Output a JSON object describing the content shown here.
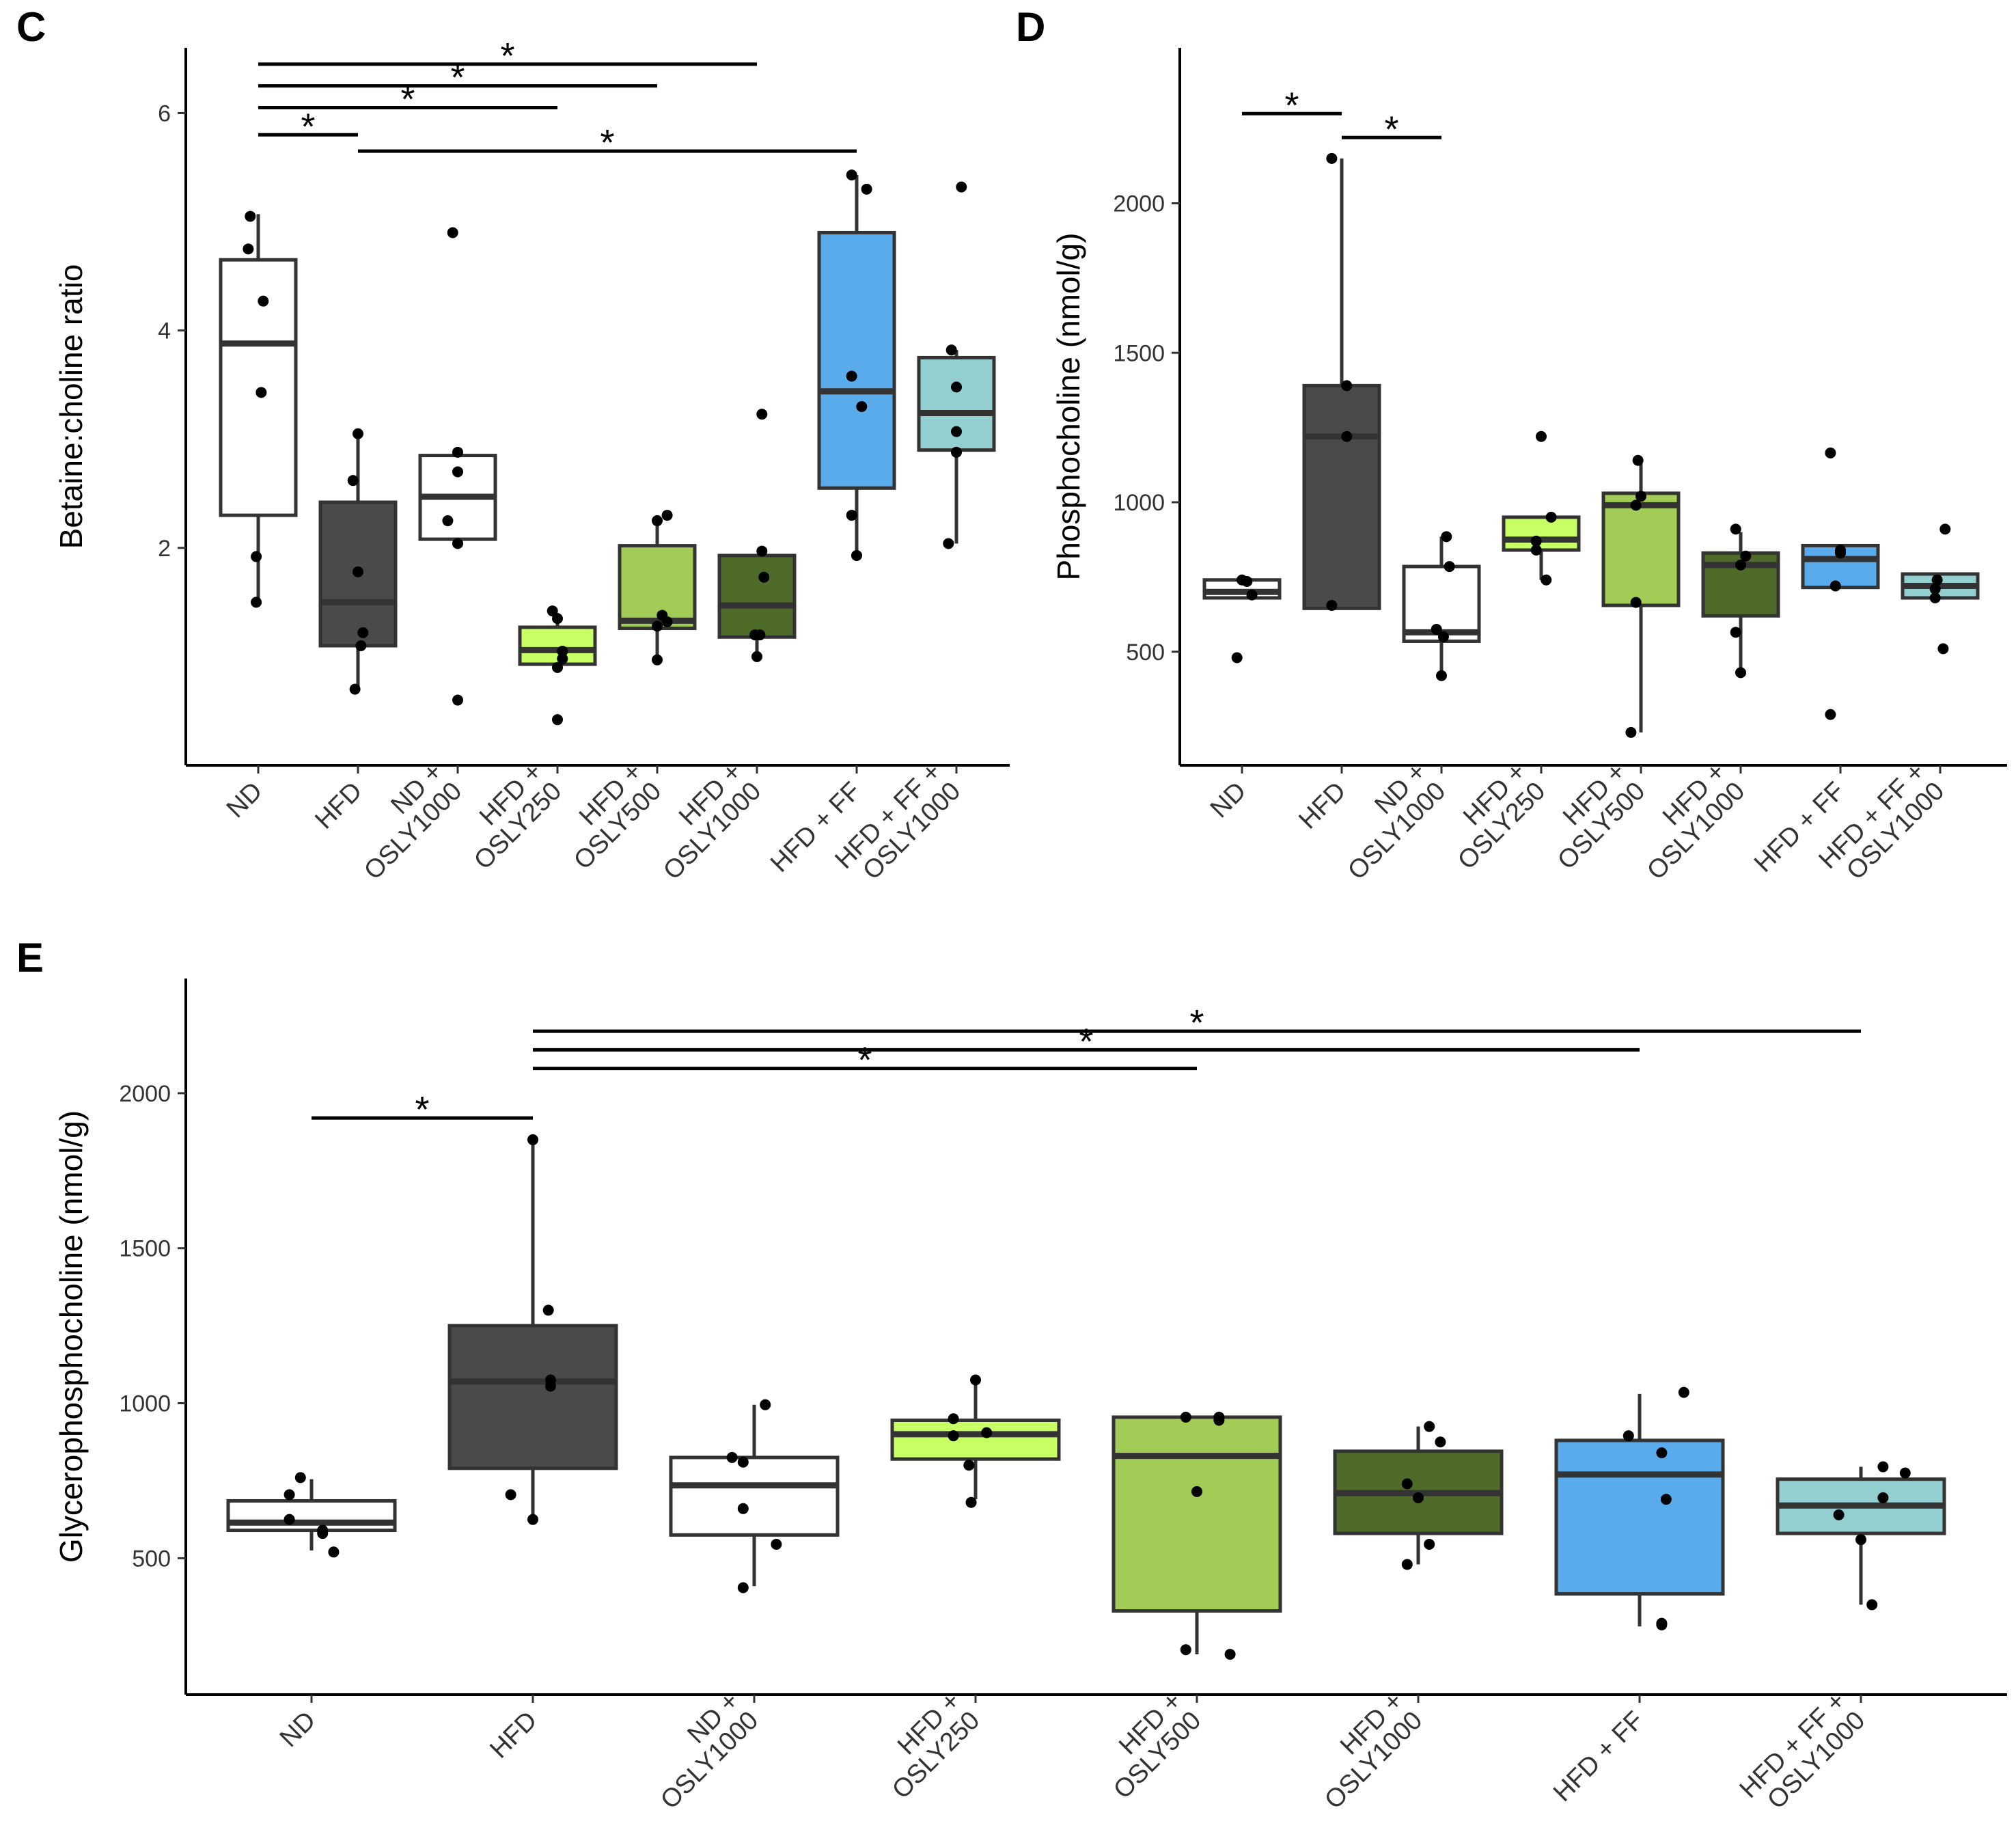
{
  "figure": {
    "panels": [
      "C",
      "D",
      "E"
    ]
  },
  "chart_data": [
    {
      "panel": "C",
      "type": "box",
      "ylabel": "Betaine:choline ratio",
      "ylim": [
        0.0,
        6.6
      ],
      "yticks": [
        2,
        4,
        6
      ],
      "categories": [
        "ND",
        "HFD",
        "ND +\nOSLY1000",
        "HFD +\nOSLY250",
        "HFD +\nOSLY500",
        "HFD +\nOSLY1000",
        "HFD + FF",
        "HFD + FF +\nOSLY1000"
      ],
      "colors": [
        "#ffffff",
        "#4a4a4a",
        "#ffffff",
        "#c8ff64",
        "#a2cc55",
        "#4e6b2a",
        "#5aabeb",
        "#93ced0"
      ],
      "boxes": [
        {
          "whisker_low": 1.5,
          "q1": 2.3,
          "median": 3.88,
          "q3": 4.65,
          "whisker_high": 5.07
        },
        {
          "whisker_low": 0.7,
          "q1": 1.1,
          "median": 1.5,
          "q3": 2.42,
          "whisker_high": 3.05
        },
        {
          "whisker_low": 2.04,
          "q1": 2.08,
          "median": 2.47,
          "q3": 2.85,
          "whisker_high": 2.85
        },
        {
          "whisker_low": 0.9,
          "q1": 0.93,
          "median": 1.06,
          "q3": 1.27,
          "whisker_high": 1.4
        },
        {
          "whisker_low": 0.96,
          "q1": 1.26,
          "median": 1.33,
          "q3": 2.02,
          "whisker_high": 2.3
        },
        {
          "whisker_low": 1.0,
          "q1": 1.18,
          "median": 1.47,
          "q3": 1.93,
          "whisker_high": 1.93
        },
        {
          "whisker_low": 1.93,
          "q1": 2.55,
          "median": 3.44,
          "q3": 4.9,
          "whisker_high": 5.43
        },
        {
          "whisker_low": 2.04,
          "q1": 2.9,
          "median": 3.24,
          "q3": 3.75,
          "whisker_high": 3.82
        }
      ],
      "points": [
        [
          [
            -0.08,
            5.05
          ],
          [
            -0.1,
            4.75
          ],
          [
            0.05,
            4.27
          ],
          [
            0.03,
            3.43
          ],
          [
            -0.02,
            1.92
          ],
          [
            -0.02,
            1.5
          ]
        ],
        [
          [
            0.0,
            3.05
          ],
          [
            -0.05,
            2.62
          ],
          [
            0.0,
            1.78
          ],
          [
            0.05,
            1.22
          ],
          [
            0.03,
            1.1
          ],
          [
            -0.03,
            0.7
          ]
        ],
        [
          [
            -0.05,
            4.9
          ],
          [
            0.0,
            2.88
          ],
          [
            0.0,
            2.7
          ],
          [
            -0.1,
            2.25
          ],
          [
            0.0,
            2.04
          ],
          [
            0.0,
            0.6
          ]
        ],
        [
          [
            -0.05,
            1.42
          ],
          [
            0.0,
            1.35
          ],
          [
            0.05,
            1.05
          ],
          [
            0.0,
            0.9
          ],
          [
            0.05,
            0.98
          ],
          [
            0.0,
            0.42
          ]
        ],
        [
          [
            0.1,
            2.3
          ],
          [
            0.0,
            2.25
          ],
          [
            0.05,
            1.38
          ],
          [
            0.1,
            1.32
          ],
          [
            0.0,
            0.97
          ],
          [
            0.0,
            1.28
          ]
        ],
        [
          [
            0.05,
            3.23
          ],
          [
            0.05,
            1.97
          ],
          [
            0.07,
            1.73
          ],
          [
            -0.02,
            1.2
          ],
          [
            0.03,
            1.2
          ],
          [
            0.0,
            1.0
          ]
        ],
        [
          [
            -0.05,
            5.43
          ],
          [
            0.1,
            5.3
          ],
          [
            -0.05,
            3.58
          ],
          [
            0.05,
            3.3
          ],
          [
            -0.05,
            2.3
          ],
          [
            0.0,
            1.93
          ]
        ],
        [
          [
            0.05,
            5.32
          ],
          [
            -0.05,
            3.82
          ],
          [
            0.0,
            3.48
          ],
          [
            0.0,
            3.07
          ],
          [
            0.0,
            2.88
          ],
          [
            -0.08,
            2.04
          ]
        ]
      ],
      "significance": [
        {
          "from": 0,
          "to": 5,
          "y": 6.45,
          "label": "*"
        },
        {
          "from": 0,
          "to": 4,
          "y": 6.25,
          "label": "*"
        },
        {
          "from": 0,
          "to": 3,
          "y": 6.05,
          "label": "*"
        },
        {
          "from": 0,
          "to": 1,
          "y": 5.8,
          "label": "*"
        },
        {
          "from": 1,
          "to": 6,
          "y": 5.65,
          "label": "*"
        }
      ]
    },
    {
      "panel": "D",
      "type": "box",
      "ylabel": "Phosphocholine (nmol/g)",
      "ylim": [
        120,
        2520
      ],
      "yticks": [
        500,
        1000,
        1500,
        2000
      ],
      "categories": [
        "ND",
        "HFD",
        "ND +\nOSLY1000",
        "HFD +\nOSLY250",
        "HFD +\nOSLY500",
        "HFD +\nOSLY1000",
        "HFD + FF",
        "HFD + FF +\nOSLY1000"
      ],
      "colors": [
        "#ffffff",
        "#4a4a4a",
        "#ffffff",
        "#c8ff64",
        "#a2cc55",
        "#4e6b2a",
        "#5aabeb",
        "#93ced0"
      ],
      "boxes": [
        {
          "whisker_low": 680,
          "q1": 680,
          "median": 700,
          "q3": 740,
          "whisker_high": 740
        },
        {
          "whisker_low": 645,
          "q1": 645,
          "median": 1220,
          "q3": 1390,
          "whisker_high": 2150
        },
        {
          "whisker_low": 420,
          "q1": 535,
          "median": 565,
          "q3": 785,
          "whisker_high": 885
        },
        {
          "whisker_low": 740,
          "q1": 840,
          "median": 875,
          "q3": 950,
          "whisker_high": 950
        },
        {
          "whisker_low": 230,
          "q1": 655,
          "median": 990,
          "q3": 1030,
          "whisker_high": 1130
        },
        {
          "whisker_low": 425,
          "q1": 620,
          "median": 790,
          "q3": 830,
          "whisker_high": 900
        },
        {
          "whisker_low": 715,
          "q1": 715,
          "median": 810,
          "q3": 855,
          "whisker_high": 855
        },
        {
          "whisker_low": 680,
          "q1": 680,
          "median": 720,
          "q3": 760,
          "whisker_high": 760
        }
      ],
      "points": [
        [
          [
            0.0,
            740
          ],
          [
            0.05,
            735
          ],
          [
            0.1,
            690
          ],
          [
            -0.05,
            480
          ]
        ],
        [
          [
            -0.1,
            2150
          ],
          [
            0.05,
            1390
          ],
          [
            0.05,
            1220
          ],
          [
            -0.1,
            655
          ]
        ],
        [
          [
            0.05,
            885
          ],
          [
            0.08,
            785
          ],
          [
            -0.05,
            575
          ],
          [
            0.02,
            550
          ],
          [
            0.0,
            420
          ]
        ],
        [
          [
            0.0,
            1220
          ],
          [
            0.1,
            950
          ],
          [
            -0.05,
            870
          ],
          [
            -0.05,
            840
          ],
          [
            0.05,
            740
          ]
        ],
        [
          [
            -0.03,
            1140
          ],
          [
            0.0,
            1020
          ],
          [
            -0.05,
            990
          ],
          [
            -0.05,
            665
          ],
          [
            -0.1,
            230
          ]
        ],
        [
          [
            -0.05,
            910
          ],
          [
            0.05,
            820
          ],
          [
            0.0,
            790
          ],
          [
            -0.05,
            565
          ],
          [
            0.0,
            430
          ]
        ],
        [
          [
            -0.1,
            1165
          ],
          [
            0.0,
            840
          ],
          [
            0.0,
            830
          ],
          [
            -0.05,
            720
          ],
          [
            -0.1,
            290
          ]
        ],
        [
          [
            0.05,
            910
          ],
          [
            -0.03,
            740
          ],
          [
            -0.05,
            710
          ],
          [
            -0.05,
            680
          ],
          [
            0.03,
            510
          ]
        ]
      ],
      "significance": [
        {
          "from": 0,
          "to": 1,
          "y": 2300,
          "label": "*"
        },
        {
          "from": 1,
          "to": 2,
          "y": 2220,
          "label": "*"
        }
      ]
    },
    {
      "panel": "E",
      "type": "box",
      "ylabel": "Glycerophosphocholine (nmol/g)",
      "ylim": [
        60,
        2370
      ],
      "yticks": [
        500,
        1000,
        1500,
        2000
      ],
      "categories": [
        "ND",
        "HFD",
        "ND +\nOSLY1000",
        "HFD +\nOSLY250",
        "HFD +\nOSLY500",
        "HFD +\nOSLY1000",
        "HFD + FF",
        "HFD + FF +\nOSLY1000"
      ],
      "colors": [
        "#ffffff",
        "#4a4a4a",
        "#ffffff",
        "#c8ff64",
        "#a2cc55",
        "#4e6b2a",
        "#5aabeb",
        "#93ced0"
      ],
      "boxes": [
        {
          "whisker_low": 525,
          "q1": 590,
          "median": 615,
          "q3": 685,
          "whisker_high": 755
        },
        {
          "whisker_low": 625,
          "q1": 790,
          "median": 1070,
          "q3": 1250,
          "whisker_high": 1850
        },
        {
          "whisker_low": 410,
          "q1": 575,
          "median": 735,
          "q3": 825,
          "whisker_high": 995
        },
        {
          "whisker_low": 690,
          "q1": 820,
          "median": 900,
          "q3": 945,
          "whisker_high": 1075
        },
        {
          "whisker_low": 190,
          "q1": 330,
          "median": 830,
          "q3": 955,
          "whisker_high": 955
        },
        {
          "whisker_low": 480,
          "q1": 580,
          "median": 710,
          "q3": 845,
          "whisker_high": 925
        },
        {
          "whisker_low": 280,
          "q1": 385,
          "median": 770,
          "q3": 880,
          "whisker_high": 1030
        },
        {
          "whisker_low": 350,
          "q1": 580,
          "median": 670,
          "q3": 755,
          "whisker_high": 795
        }
      ],
      "points": [
        [
          [
            -0.05,
            760
          ],
          [
            -0.1,
            705
          ],
          [
            -0.1,
            625
          ],
          [
            0.05,
            590
          ],
          [
            0.05,
            580
          ],
          [
            0.1,
            520
          ]
        ],
        [
          [
            0.0,
            1850
          ],
          [
            0.07,
            1300
          ],
          [
            0.08,
            1075
          ],
          [
            0.08,
            1055
          ],
          [
            -0.1,
            705
          ],
          [
            0.0,
            625
          ]
        ],
        [
          [
            0.05,
            995
          ],
          [
            -0.1,
            825
          ],
          [
            -0.05,
            810
          ],
          [
            -0.05,
            660
          ],
          [
            0.1,
            545
          ],
          [
            -0.05,
            405
          ]
        ],
        [
          [
            -0.1,
            950
          ],
          [
            0.0,
            1075
          ],
          [
            0.05,
            905
          ],
          [
            -0.1,
            895
          ],
          [
            -0.03,
            800
          ],
          [
            -0.02,
            680
          ]
        ],
        [
          [
            -0.05,
            955
          ],
          [
            0.1,
            945
          ],
          [
            0.1,
            955
          ],
          [
            0.0,
            715
          ],
          [
            -0.05,
            205
          ],
          [
            0.15,
            190
          ]
        ],
        [
          [
            0.05,
            925
          ],
          [
            0.1,
            875
          ],
          [
            -0.05,
            740
          ],
          [
            0.0,
            695
          ],
          [
            0.05,
            545
          ],
          [
            -0.05,
            480
          ]
        ],
        [
          [
            0.2,
            1035
          ],
          [
            -0.05,
            895
          ],
          [
            0.1,
            840
          ],
          [
            0.12,
            690
          ],
          [
            0.1,
            290
          ],
          [
            0.1,
            285
          ]
        ],
        [
          [
            0.1,
            795
          ],
          [
            0.2,
            775
          ],
          [
            0.1,
            695
          ],
          [
            -0.1,
            640
          ],
          [
            0.0,
            560
          ],
          [
            0.05,
            350
          ]
        ]
      ],
      "significance": [
        {
          "from": 1,
          "to": 7,
          "y": 2200,
          "label": "*"
        },
        {
          "from": 1,
          "to": 6,
          "y": 2140,
          "label": "*"
        },
        {
          "from": 1,
          "to": 4,
          "y": 2080,
          "label": "*"
        },
        {
          "from": 0,
          "to": 1,
          "y": 1920,
          "label": "*"
        }
      ]
    }
  ]
}
